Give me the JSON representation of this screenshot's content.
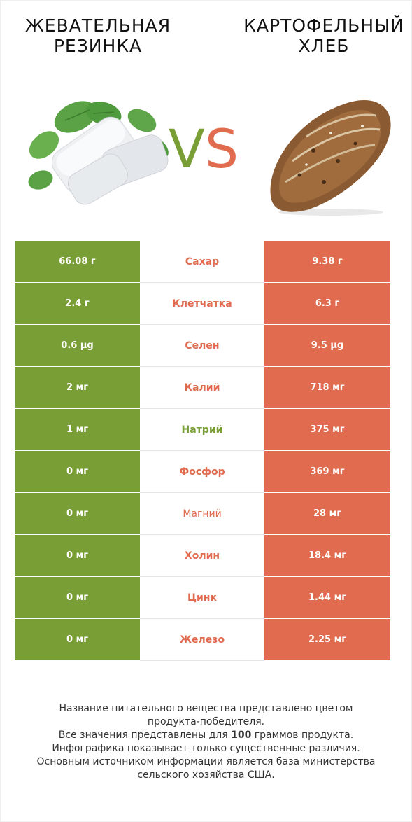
{
  "header": {
    "left_title": [
      "ЖЕВАТЕЛЬНАЯ",
      "РЕЗИНКА"
    ],
    "right_title": [
      "КАРТОФЕЛЬНЫЙ",
      "ХЛЕБ"
    ],
    "vs_v": "V",
    "vs_s": "S"
  },
  "colors": {
    "green": "#7a9e36",
    "red": "#e06b4e"
  },
  "rows": [
    {
      "left": "66.08 г",
      "name": "Сахар",
      "right": "9.38 г",
      "winner": "red"
    },
    {
      "left": "2.4 г",
      "name": "Клетчатка",
      "right": "6.3 г",
      "winner": "red"
    },
    {
      "left": "0.6 µg",
      "name": "Селен",
      "right": "9.5 µg",
      "winner": "red"
    },
    {
      "left": "2 мг",
      "name": "Калий",
      "right": "718 мг",
      "winner": "red"
    },
    {
      "left": "1 мг",
      "name": "Натрий",
      "right": "375 мг",
      "winner": "green"
    },
    {
      "left": "0 мг",
      "name": "Фосфор",
      "right": "369 мг",
      "winner": "red"
    },
    {
      "left": "0 мг",
      "name": "Магний",
      "right": "28 мг",
      "winner": "red"
    },
    {
      "left": "0 мг",
      "name": "Холин",
      "right": "18.4 мг",
      "winner": "red"
    },
    {
      "left": "0 мг",
      "name": "Цинк",
      "right": "1.44 мг",
      "winner": "red"
    },
    {
      "left": "0 мг",
      "name": "Железо",
      "right": "2.25 мг",
      "winner": "red"
    }
  ],
  "footer": {
    "line1": "Название питательного вещества представлено цветом",
    "line2": "продукта-победителя.",
    "line3_pre": "Все значения представлены для ",
    "line3_bold": "100",
    "line3_post": " граммов продукта.",
    "line4": "Инфографика показывает только существенные различия.",
    "line5": "Основным источником информации является база министерства",
    "line6": "сельского хозяйства США."
  },
  "images": {
    "left": "chewing-gum-with-mint-leaves",
    "right": "potato-bread-loaf"
  }
}
